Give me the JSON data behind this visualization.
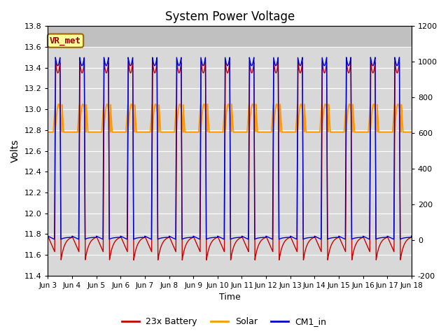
{
  "title": "System Power Voltage",
  "ylabel_left": "Volts",
  "xlabel": "Time",
  "ylim_left": [
    11.4,
    13.8
  ],
  "ylim_right": [
    -200,
    1200
  ],
  "xtick_labels": [
    "Jun 3",
    "Jun 4",
    "Jun 5",
    "Jun 6",
    "Jun 7",
    "Jun 8",
    "Jun 9",
    "Jun 10",
    "Jun 11",
    "Jun 12",
    "Jun 13",
    "Jun 14",
    "Jun 15",
    "Jun 16",
    "Jun 17",
    "Jun 18"
  ],
  "legend_labels": [
    "23x Battery",
    "Solar",
    "CM1_in"
  ],
  "legend_colors": [
    "#cc0000",
    "#ff9900",
    "#0000cc"
  ],
  "battery_color": "#cc0000",
  "solar_color": "#ff9900",
  "cm1_color": "#0000cc",
  "annotation_text": "VR_met",
  "annotation_color": "#990000",
  "annotation_bg": "#ffff99",
  "annotation_border": "#996600",
  "plot_bg_color": "#d8d8d8",
  "top_band_color": "#c8c8c8",
  "right_yticks": [
    -200,
    0,
    200,
    400,
    600,
    800,
    1000,
    1200
  ],
  "left_yticks": [
    11.4,
    11.6,
    11.8,
    12.0,
    12.2,
    12.4,
    12.6,
    12.8,
    13.0,
    13.2,
    13.4,
    13.6,
    13.8
  ],
  "night_battery_low": 11.75,
  "night_battery_min": 11.55,
  "day_battery_high": 13.45,
  "night_cm1_low": 11.75,
  "day_cm1_high": 13.5,
  "night_solar_level": 12.78,
  "day_solar_peak": 13.05
}
